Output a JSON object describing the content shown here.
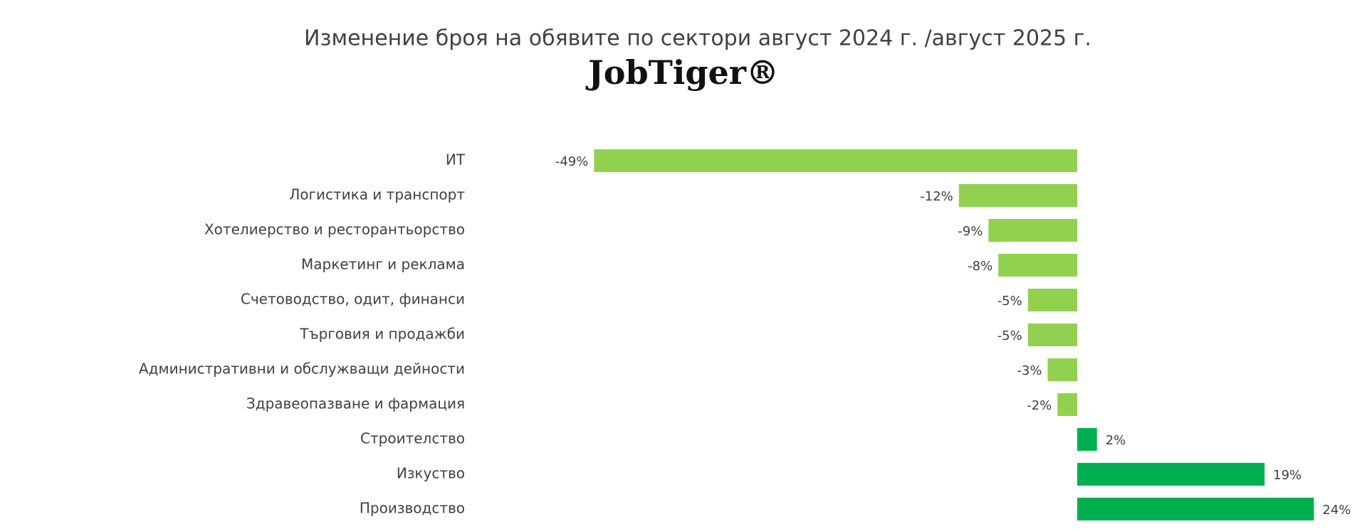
{
  "chart_data": {
    "type": "bar",
    "orientation": "horizontal",
    "title": "Изменение броя на обявите по сектори август 2024 г. /август 2025 г.",
    "brand": "JobTiger®",
    "categories": [
      "ИТ",
      "Логистика и транспорт",
      "Хотелиерство и ресторантьорство",
      "Маркетинг и реклама",
      "Счетоводство, одит, финанси",
      "Търговия и продажби",
      "Административни и обслужващи дейности",
      "Здравеопазване и фармация",
      "Строителство",
      "Изкуство",
      "Производство"
    ],
    "values": [
      -49,
      -12,
      -9,
      -8,
      -5,
      -5,
      -3,
      -2,
      2,
      19,
      24
    ],
    "value_labels": [
      "-49%",
      "-12%",
      "-9%",
      "-8%",
      "-5%",
      "-5%",
      "-3%",
      "-2%",
      "2%",
      "19%",
      "24%"
    ],
    "colors": [
      "#92d050",
      "#92d050",
      "#92d050",
      "#92d050",
      "#92d050",
      "#92d050",
      "#92d050",
      "#92d050",
      "#00b050",
      "#00b050",
      "#00b050"
    ]
  }
}
